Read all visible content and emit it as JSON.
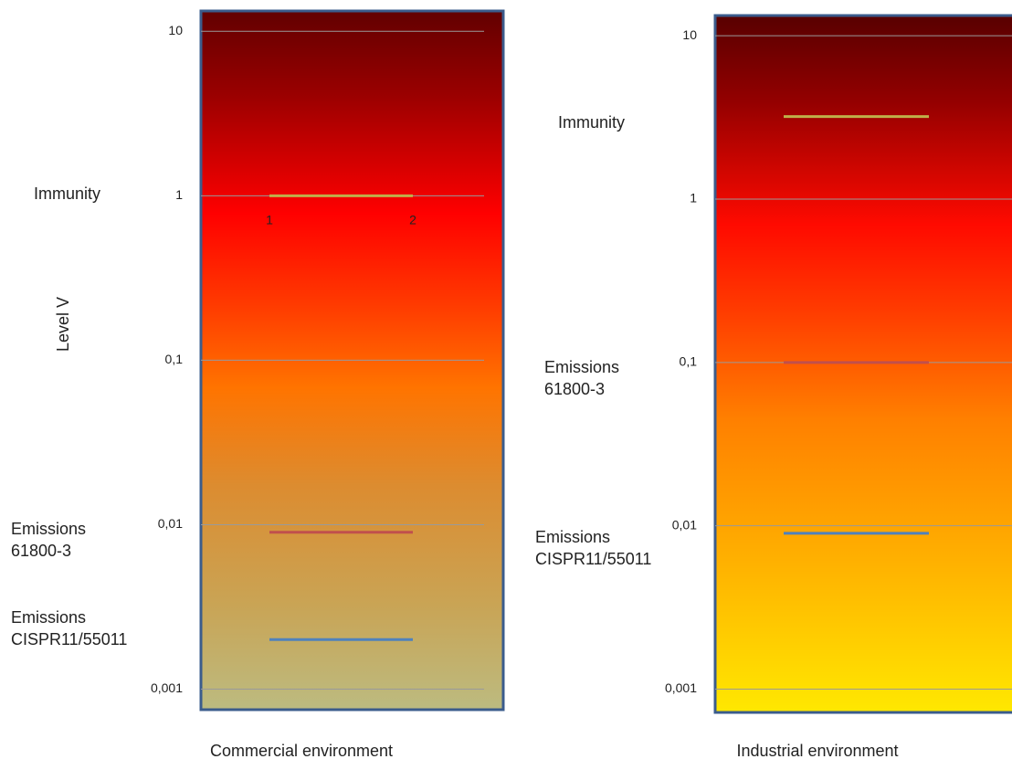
{
  "chart_data": [
    {
      "type": "line",
      "log_y": true,
      "grid": true,
      "x_label": "Commercial environment",
      "y_label": "Level V",
      "categories": [
        "1",
        "2"
      ],
      "ylim": [
        0.00075,
        13.3
      ],
      "yticks": [
        10,
        1,
        {
          "value": 0.1,
          "label": "0,1"
        },
        {
          "value": 0.01,
          "label": "0,01"
        },
        {
          "value": 0.001,
          "label": "0,001"
        }
      ],
      "series": [
        {
          "name": "Immunity",
          "color": "#bfb04a",
          "values": [
            1,
            1
          ]
        },
        {
          "name": "Emissions 61800-3",
          "color": "#c0504d",
          "values": [
            0.009,
            0.009
          ]
        },
        {
          "name": "Emissions CISPR11/55011",
          "color": "#4f81bd",
          "values": [
            0.002,
            0.002
          ]
        }
      ]
    },
    {
      "type": "line",
      "log_y": true,
      "grid": true,
      "x_label": "Industrial environment",
      "categories": [
        null,
        null
      ],
      "ylim": [
        0.00072,
        13.3
      ],
      "yticks": [
        10,
        1,
        {
          "value": 0.1,
          "label": "0,1"
        },
        {
          "value": 0.01,
          "label": "0,01"
        },
        {
          "value": 0.001,
          "label": "0,001"
        }
      ],
      "series": [
        {
          "name": "Immunity",
          "color": "#bfb04a",
          "values": [
            3.2,
            3.2
          ]
        },
        {
          "name": "Emissions 61800-3",
          "color": "#c0504d",
          "values": [
            0.1,
            0.1
          ]
        },
        {
          "name": "Emissions CISPR11/55011",
          "color": "#4f81bd",
          "values": [
            0.009,
            0.009
          ]
        }
      ]
    }
  ]
}
